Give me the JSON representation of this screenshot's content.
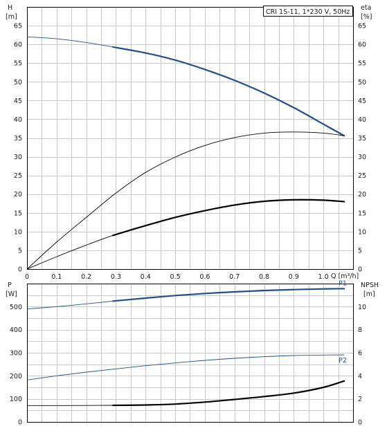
{
  "chart_data": [
    {
      "type": "line",
      "annotation": "CRI 1S-11, 1*230 V, 50Hz",
      "ylabel_left": [
        "H",
        "[m]"
      ],
      "ylabel_right": [
        "eta",
        "[%]"
      ],
      "xlabel": "Q [m³/h]",
      "xlim": [
        0,
        1.1
      ],
      "ylim": [
        0,
        70
      ],
      "x_ticks": [
        0,
        0.1,
        0.2,
        0.3,
        0.4,
        0.5,
        0.6,
        0.7,
        0.8,
        0.9,
        1.0
      ],
      "x_tick_labels": [
        "0",
        "0.1",
        "0.2",
        "0.3",
        "0.4",
        "0.5",
        "0.6",
        "0.7",
        "0.8",
        "0.9",
        "1.0"
      ],
      "y_ticks": [
        0,
        5,
        10,
        15,
        20,
        25,
        30,
        35,
        40,
        45,
        50,
        55,
        60,
        65
      ],
      "grid": true,
      "series": [
        {
          "name": "H",
          "color": "#1f4e8c",
          "x": [
            0,
            0.1,
            0.2,
            0.29,
            0.4,
            0.5,
            0.6,
            0.7,
            0.8,
            0.9,
            1.0,
            1.07
          ],
          "y": [
            62,
            61.5,
            60.5,
            59.3,
            57.7,
            55.8,
            53.3,
            50.4,
            47.0,
            43.1,
            38.7,
            35.6
          ],
          "thick_from_x": 0.29
        },
        {
          "name": "eta",
          "color": "#000000",
          "x": [
            0,
            0.1,
            0.2,
            0.3,
            0.4,
            0.5,
            0.6,
            0.7,
            0.8,
            0.9,
            1.0,
            1.07
          ],
          "y": [
            0,
            7.2,
            13.8,
            20.3,
            25.8,
            29.9,
            33.0,
            35.1,
            36.3,
            36.6,
            36.3,
            35.6
          ],
          "thick_from_x": null
        },
        {
          "name": "eta2",
          "color": "#000000",
          "x": [
            0,
            0.1,
            0.2,
            0.29,
            0.4,
            0.5,
            0.6,
            0.7,
            0.8,
            0.9,
            1.0,
            1.07
          ],
          "y": [
            0,
            3.3,
            6.4,
            9.0,
            11.6,
            13.8,
            15.6,
            17.1,
            18.1,
            18.5,
            18.4,
            18.0
          ],
          "thick_from_x": 0.29
        }
      ]
    },
    {
      "type": "line",
      "ylabel_left": [
        "P",
        "[W]"
      ],
      "ylabel_right": [
        "NPSH",
        "[m]"
      ],
      "xlim": [
        0,
        1.1
      ],
      "ylim": [
        0,
        600
      ],
      "y_ticks_left": [
        0,
        100,
        200,
        300,
        400,
        500
      ],
      "y_ticks_right": [
        0,
        2,
        4,
        6,
        8,
        10
      ],
      "y_ticks_right_labels": [
        "0",
        "2",
        "4",
        "6",
        "8",
        "10"
      ],
      "grid": true,
      "series": [
        {
          "name": "P1",
          "color": "#1f4e8c",
          "x": [
            0,
            0.1,
            0.2,
            0.29,
            0.4,
            0.5,
            0.6,
            0.7,
            0.8,
            0.9,
            1.0,
            1.07
          ],
          "y": [
            490,
            500,
            512,
            524,
            537,
            548,
            557,
            564,
            570,
            574,
            577,
            578
          ],
          "thick_from_x": 0.29,
          "label": "P1"
        },
        {
          "name": "P2",
          "color": "#1f4e8c",
          "x": [
            0,
            0.1,
            0.2,
            0.3,
            0.4,
            0.5,
            0.6,
            0.7,
            0.8,
            0.9,
            1.0,
            1.07
          ],
          "y": [
            182,
            200,
            216,
            230,
            244,
            256,
            267,
            276,
            283,
            288,
            290,
            291
          ],
          "thick_from_x": null,
          "label": "P2"
        },
        {
          "name": "NPSH",
          "color": "#000000",
          "axis": "right",
          "x": [
            0,
            0.1,
            0.2,
            0.29,
            0.4,
            0.5,
            0.6,
            0.7,
            0.8,
            0.9,
            1.0,
            1.07
          ],
          "y": [
            1.42,
            1.42,
            1.43,
            1.44,
            1.47,
            1.55,
            1.72,
            1.95,
            2.2,
            2.5,
            3.0,
            3.55
          ],
          "thick_from_x": 0.29
        }
      ]
    }
  ]
}
